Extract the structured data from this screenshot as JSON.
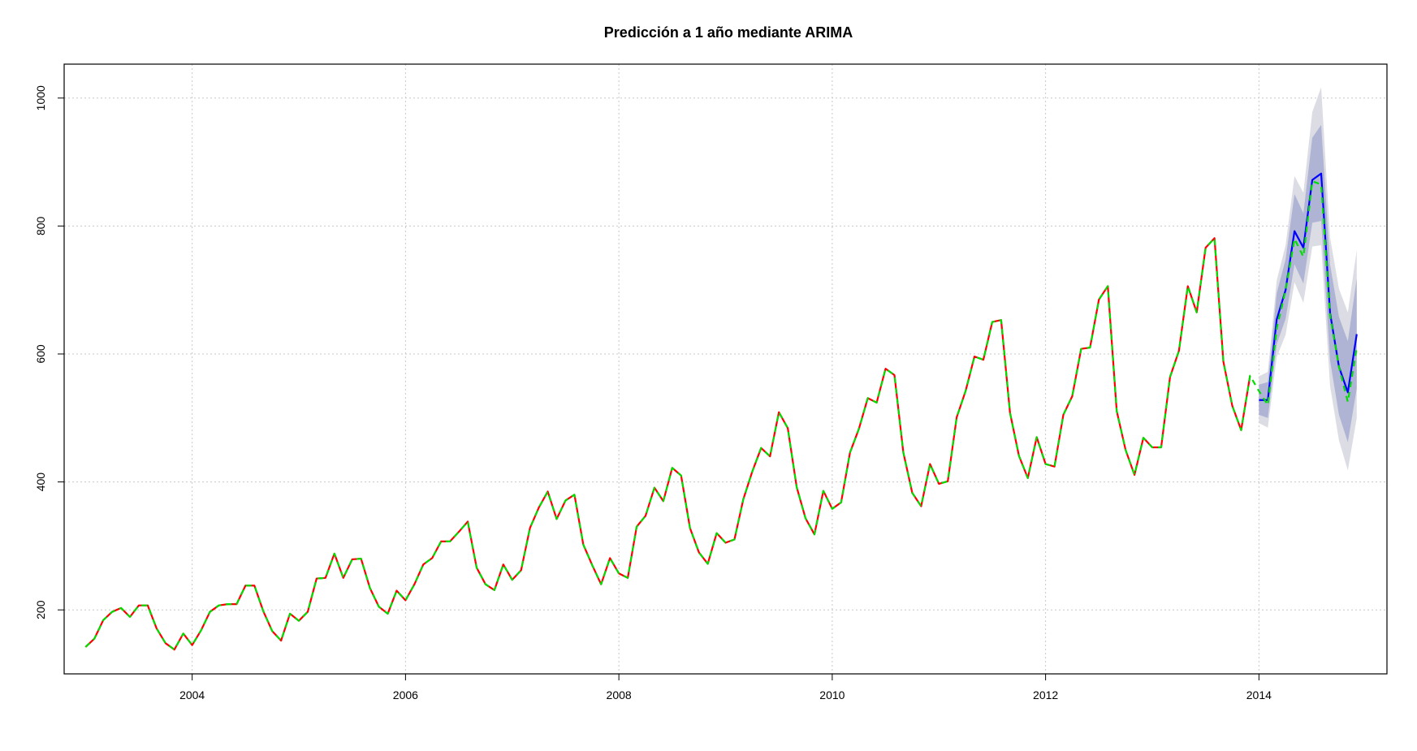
{
  "chart_data": {
    "type": "line",
    "title": "Predicción a 1 año mediante ARIMA",
    "xlabel": "",
    "ylabel": "",
    "xlim": [
      2002.8,
      2015.2
    ],
    "ylim": [
      100,
      1053
    ],
    "x_ticks": [
      2004,
      2006,
      2008,
      2010,
      2012,
      2014
    ],
    "x_tick_labels": [
      "2004",
      "2006",
      "2008",
      "2010",
      "2012",
      "2014"
    ],
    "y_ticks": [
      200,
      400,
      600,
      800,
      1000
    ],
    "y_tick_labels": [
      "200",
      "400",
      "600",
      "800",
      "1000"
    ],
    "grid": true,
    "series": [
      {
        "role": "observed",
        "color": "#ff0000",
        "line_style": "solid",
        "x_start": 2003.0,
        "x_step": 0.0833333,
        "values": [
          142,
          155,
          184,
          197,
          203,
          189,
          207,
          207,
          171,
          148,
          138,
          163,
          145,
          168,
          197,
          207,
          209,
          209,
          238,
          238,
          198,
          167,
          152,
          194,
          183,
          197,
          249,
          250,
          288,
          250,
          279,
          280,
          234,
          205,
          194,
          230,
          215,
          240,
          271,
          281,
          307,
          307,
          322,
          338,
          266,
          240,
          231,
          271,
          247,
          262,
          328,
          360,
          385,
          342,
          371,
          380,
          302,
          270,
          240,
          281,
          257,
          250,
          330,
          347,
          391,
          370,
          422,
          410,
          328,
          290,
          272,
          320,
          305,
          310,
          373,
          416,
          453,
          440,
          509,
          484,
          392,
          343,
          318,
          386,
          358,
          368,
          446,
          483,
          531,
          524,
          577,
          567,
          446,
          383,
          362,
          428,
          397,
          401,
          501,
          542,
          596,
          591,
          650,
          653,
          508,
          441,
          406,
          470,
          428,
          424,
          505,
          534,
          608,
          610,
          685,
          706,
          511,
          450,
          411,
          469,
          454,
          454,
          564,
          605,
          706,
          665,
          766,
          781,
          588,
          519,
          481,
          566
        ]
      },
      {
        "role": "fitted_and_actual",
        "color": "#00dd00",
        "line_style": "dashed",
        "x_start": 2003.0,
        "x_step": 0.0833333,
        "values": [
          142,
          155,
          184,
          197,
          203,
          189,
          207,
          207,
          171,
          148,
          138,
          163,
          145,
          168,
          197,
          207,
          209,
          209,
          238,
          238,
          198,
          167,
          152,
          194,
          183,
          197,
          249,
          250,
          288,
          250,
          279,
          280,
          234,
          205,
          194,
          230,
          215,
          240,
          271,
          281,
          307,
          307,
          322,
          338,
          266,
          240,
          231,
          271,
          247,
          262,
          328,
          360,
          385,
          342,
          371,
          380,
          302,
          270,
          240,
          281,
          257,
          250,
          330,
          347,
          391,
          370,
          422,
          410,
          328,
          290,
          272,
          320,
          305,
          310,
          373,
          416,
          453,
          440,
          509,
          484,
          392,
          343,
          318,
          386,
          358,
          368,
          446,
          483,
          531,
          524,
          577,
          567,
          446,
          383,
          362,
          428,
          397,
          401,
          501,
          542,
          596,
          591,
          650,
          653,
          508,
          441,
          406,
          470,
          428,
          424,
          505,
          534,
          608,
          610,
          685,
          706,
          511,
          450,
          411,
          469,
          454,
          454,
          564,
          605,
          706,
          665,
          766,
          781,
          588,
          519,
          481,
          566,
          542,
          520,
          640,
          700,
          780,
          752,
          870,
          865,
          660,
          580,
          525,
          610
        ]
      },
      {
        "role": "forecast",
        "color": "#0000ff",
        "line_style": "solid",
        "x_start": 2014.0,
        "x_step": 0.0833333,
        "values": [
          528,
          528,
          654,
          700,
          792,
          766,
          872,
          882,
          664,
          580,
          540,
          631
        ]
      }
    ],
    "interval_80": {
      "color": "#b0b4d4",
      "lower": [
        505,
        500,
        615,
        655,
        740,
        710,
        805,
        808,
        590,
        505,
        462,
        546
      ],
      "upper": [
        552,
        556,
        695,
        748,
        850,
        820,
        938,
        958,
        740,
        658,
        620,
        718
      ]
    },
    "interval_95": {
      "color": "#dcdce4",
      "lower": [
        492,
        485,
        595,
        630,
        712,
        680,
        768,
        770,
        550,
        465,
        418,
        500
      ],
      "upper": [
        565,
        572,
        715,
        770,
        878,
        852,
        978,
        1017,
        782,
        702,
        665,
        762
      ]
    }
  }
}
